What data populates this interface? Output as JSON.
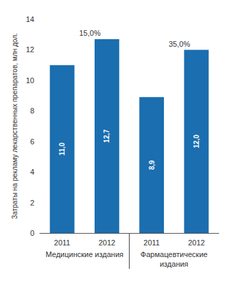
{
  "chart_data": {
    "type": "bar",
    "ylabel": "Затраты на рекламу лекарственных препаратов, млн дол.",
    "categories": [
      "2011",
      "2012",
      "2011",
      "2012"
    ],
    "groups": [
      "Медицинские издания",
      "Медицинские издания",
      "Фармацевтические\nиздания",
      "Фармацевтические\nиздания"
    ],
    "values": [
      11.0,
      12.7,
      8.9,
      12.0
    ],
    "value_labels": [
      "11,0",
      "12,7",
      "8,9",
      "12,0"
    ],
    "data_labels": true,
    "annotations": [
      null,
      "15,0%",
      null,
      "35,0%"
    ],
    "color": "#1b6eaf",
    "ylim": [
      0,
      14
    ],
    "yticks": [
      0,
      2,
      4,
      6,
      8,
      10,
      12,
      14
    ],
    "grid": false
  }
}
